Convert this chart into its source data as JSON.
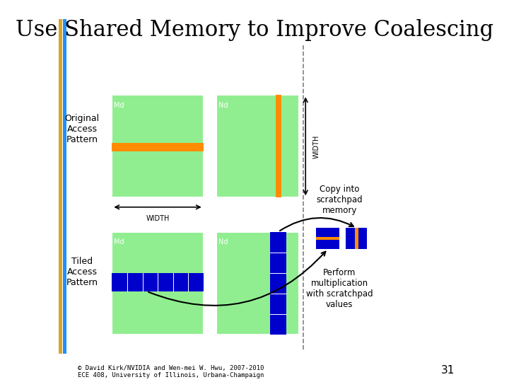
{
  "title": "Use Shared Memory to Improve Coalescing",
  "title_fontsize": 22,
  "bg_color": "#ffffff",
  "green": "#90EE90",
  "orange": "#FF8C00",
  "blue": "#0000CD",
  "text_color": "#000000",
  "left_bar_color": "#DAA520",
  "left_bar2_color": "#1E90FF",
  "dashed_line_x": 0.615,
  "footer": "© David Kirk/NVIDIA and Wen-mei W. Hwu, 2007-2010\nECE 408, University of Illinois, Urbana-Champaign",
  "page_num": "31"
}
